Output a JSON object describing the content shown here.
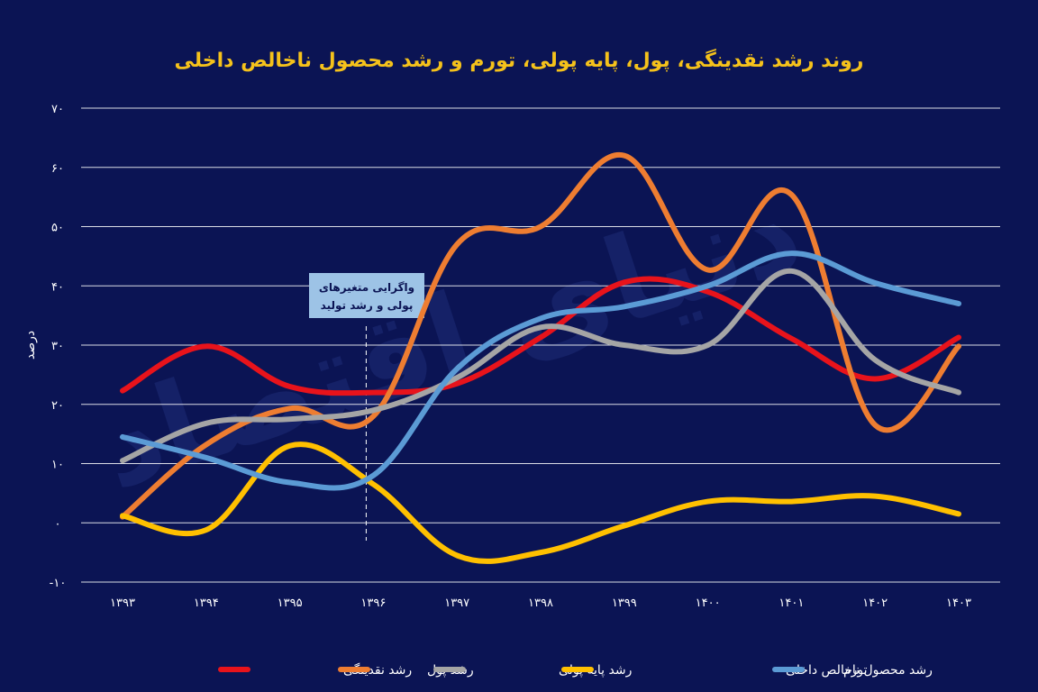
{
  "chart_data": {
    "type": "line",
    "title": "روند رشد نقدینگی، پول، پایه پولی، تورم و رشد محصول ناخالص داخلی",
    "ylabel": "درصد",
    "xlabel": "",
    "categories": [
      "۱۳۹۳",
      "۱۳۹۴",
      "۱۳۹۵",
      "۱۳۹۶",
      "۱۳۹۷",
      "۱۳۹۸",
      "۱۳۹۹",
      "۱۴۰۰",
      "۱۴۰۱",
      "۱۴۰۲",
      "۱۴۰۳"
    ],
    "ylim": [
      -10,
      70
    ],
    "yticks": [
      -10,
      0,
      10,
      20,
      30,
      40,
      50,
      60,
      70
    ],
    "ytick_labels": [
      "-۱۰",
      "۰",
      "۱۰",
      "۲۰",
      "۳۰",
      "۴۰",
      "۵۰",
      "۶۰",
      "۷۰"
    ],
    "grid": true,
    "legend_position": "bottom",
    "series": [
      {
        "name": "رشد نقدینگی",
        "color": "#e8131b",
        "values": [
          22.3,
          29.8,
          23.0,
          22.0,
          23.5,
          31.3,
          40.6,
          39.0,
          31.1,
          24.3,
          31.3
        ]
      },
      {
        "name": "رشد پول",
        "color": "#ee7d31",
        "values": [
          1.0,
          13.2,
          19.3,
          18.0,
          47.0,
          50.0,
          62.0,
          42.7,
          55.4,
          16.5,
          29.8
        ]
      },
      {
        "name": "رشد پایه پولی",
        "color": "#a5a5a5",
        "values": [
          10.5,
          16.8,
          17.5,
          19.0,
          24.5,
          33.0,
          30.0,
          30.0,
          42.5,
          27.5,
          22.0
        ]
      },
      {
        "name": "رشد محصول ناخالص داخلی",
        "color": "#ffc000",
        "values": [
          1.2,
          -1.2,
          13.0,
          6.5,
          -5.5,
          -5.0,
          -0.5,
          3.6,
          3.6,
          4.5,
          1.5
        ]
      },
      {
        "name": "تورم",
        "color": "#5b9bd5",
        "values": [
          14.5,
          11.0,
          6.8,
          8.0,
          26.0,
          34.5,
          36.5,
          40.0,
          45.5,
          40.5,
          37.0
        ]
      }
    ],
    "annotation": {
      "text_line1": "واگرایی متغیرهای",
      "text_line2": "پولی و رشد تولید",
      "marker_x": "۱۳۹۶"
    },
    "watermark": "دنیای اقتصاد"
  }
}
